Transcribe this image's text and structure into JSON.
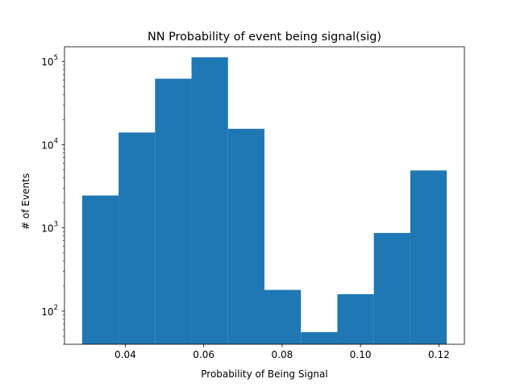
{
  "chart_data": {
    "type": "bar",
    "title": "NN Probability of event being signal(sig)",
    "xlabel": "Probability of Being Signal",
    "ylabel": "# of Events",
    "yscale": "log",
    "xlim": [
      0.0245,
      0.1265
    ],
    "ylim": [
      40,
      150000
    ],
    "color": "#1f77b4",
    "grid": false,
    "legend": "none",
    "bin_edges": [
      0.029,
      0.0383,
      0.0476,
      0.0569,
      0.0662,
      0.0755,
      0.0848,
      0.0941,
      0.1034,
      0.1127,
      0.122
    ],
    "values": [
      2450,
      14000,
      62000,
      112000,
      15500,
      180,
      56,
      160,
      870,
      4900
    ],
    "x_ticks": [
      {
        "value": 0.04,
        "label": "0.04"
      },
      {
        "value": 0.06,
        "label": "0.06"
      },
      {
        "value": 0.08,
        "label": "0.08"
      },
      {
        "value": 0.1,
        "label": "0.10"
      },
      {
        "value": 0.12,
        "label": "0.12"
      }
    ],
    "y_ticks": [
      {
        "value": 100,
        "base": "10",
        "exp": "2"
      },
      {
        "value": 1000,
        "base": "10",
        "exp": "3"
      },
      {
        "value": 10000,
        "base": "10",
        "exp": "4"
      },
      {
        "value": 100000,
        "base": "10",
        "exp": "5"
      }
    ]
  }
}
